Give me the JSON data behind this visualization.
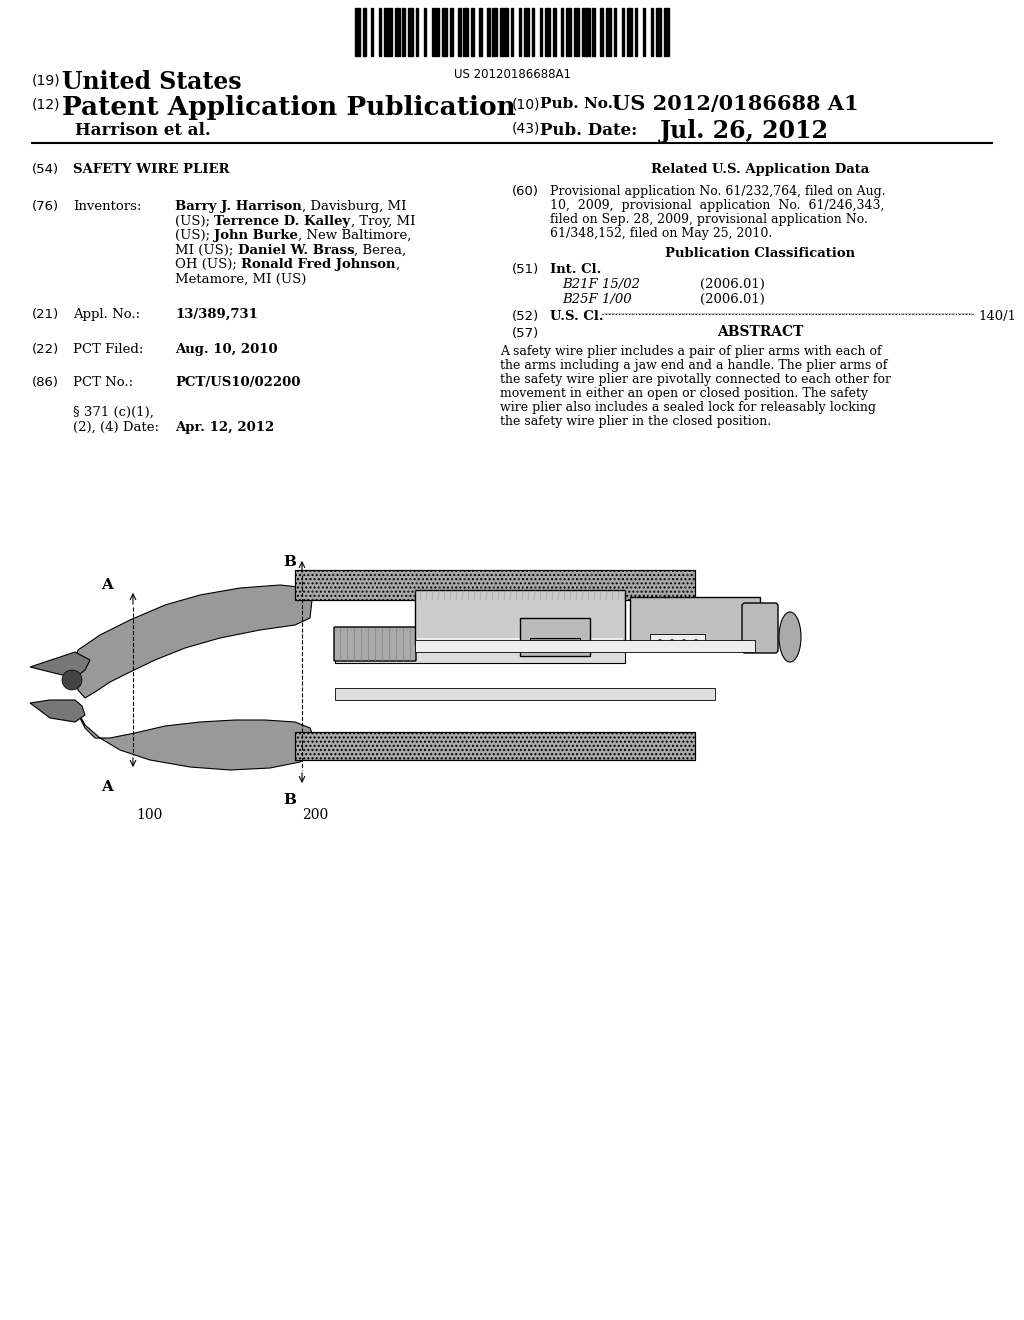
{
  "barcode_text": "US 20120186688A1",
  "header": {
    "country_num": "(19)",
    "country": "United States",
    "type_num": "(12)",
    "type": "Patent Application Publication",
    "pub_num_label_num": "(10)",
    "pub_num_label": "Pub. No.:",
    "pub_num": "US 2012/0186688 A1",
    "inventor": "Harrison et al.",
    "pub_date_num": "(43)",
    "pub_date_label": "Pub. Date:",
    "pub_date": "Jul. 26, 2012"
  },
  "left_col": {
    "title_num": "(54)",
    "title": "SAFETY WIRE PLIER",
    "inventors_num": "(76)",
    "inventors_label": "Inventors:",
    "appl_num": "(21)",
    "appl_label": "Appl. No.:",
    "appl_val": "13/389,731",
    "pct_filed_num": "(22)",
    "pct_filed_label": "PCT Filed:",
    "pct_filed_val": "Aug. 10, 2010",
    "pct_no_num": "(86)",
    "pct_no_label": "PCT No.:",
    "pct_no_val": "PCT/US10/02200",
    "section_371_line1": "§ 371 (c)(1),",
    "section_371_line2": "(2), (4) Date:",
    "section_371_val": "Apr. 12, 2012"
  },
  "right_col": {
    "related_title": "Related U.S. Application Data",
    "related_num": "(60)",
    "related_text_lines": [
      "Provisional application No. 61/232,764, filed on Aug.",
      "10,  2009,  provisional  application  No.  61/246,343,",
      "filed on Sep. 28, 2009, provisional application No.",
      "61/348,152, filed on May 25, 2010."
    ],
    "pub_class_title": "Publication Classification",
    "intcl_num": "(51)",
    "intcl_label": "Int. Cl.",
    "intcl_b21f": "B21F 15/02",
    "intcl_b21f_year": "(2006.01)",
    "intcl_b25f": "B25F 1/00",
    "intcl_b25f_year": "(2006.01)",
    "uscl_num": "(52)",
    "uscl_label": "U.S. Cl.",
    "uscl_val": "140/1",
    "abstract_num": "(57)",
    "abstract_title": "ABSTRACT",
    "abstract_text_lines": [
      "A safety wire plier includes a pair of plier arms with each of",
      "the arms including a jaw end and a handle. The plier arms of",
      "the safety wire plier are pivotally connected to each other for",
      "movement in either an open or closed position. The safety",
      "wire plier also includes a sealed lock for releasably locking",
      "the safety wire plier in the closed position."
    ]
  },
  "diagram_labels": {
    "A_top": "A",
    "B_top": "B",
    "A_bottom": "A",
    "B_bottom": "B",
    "label_100": "100",
    "label_200": "200"
  },
  "inventors_lines": [
    [
      [
        "Barry J. Harrison",
        true
      ],
      [
        ", Davisburg, MI",
        false
      ]
    ],
    [
      [
        "(US); ",
        false
      ],
      [
        "Terrence D. Kalley",
        true
      ],
      [
        ", Troy, MI",
        false
      ]
    ],
    [
      [
        "(US); ",
        false
      ],
      [
        "John Burke",
        true
      ],
      [
        ", New Baltimore,",
        false
      ]
    ],
    [
      [
        "MI (US); ",
        false
      ],
      [
        "Daniel W. Brass",
        true
      ],
      [
        ", Berea,",
        false
      ]
    ],
    [
      [
        "OH (US); ",
        false
      ],
      [
        "Ronald Fred Johnson",
        true
      ],
      [
        ",",
        false
      ]
    ],
    [
      [
        "Metamore, MI (US)",
        false
      ]
    ]
  ],
  "bg_color": "#ffffff",
  "text_color": "#000000"
}
